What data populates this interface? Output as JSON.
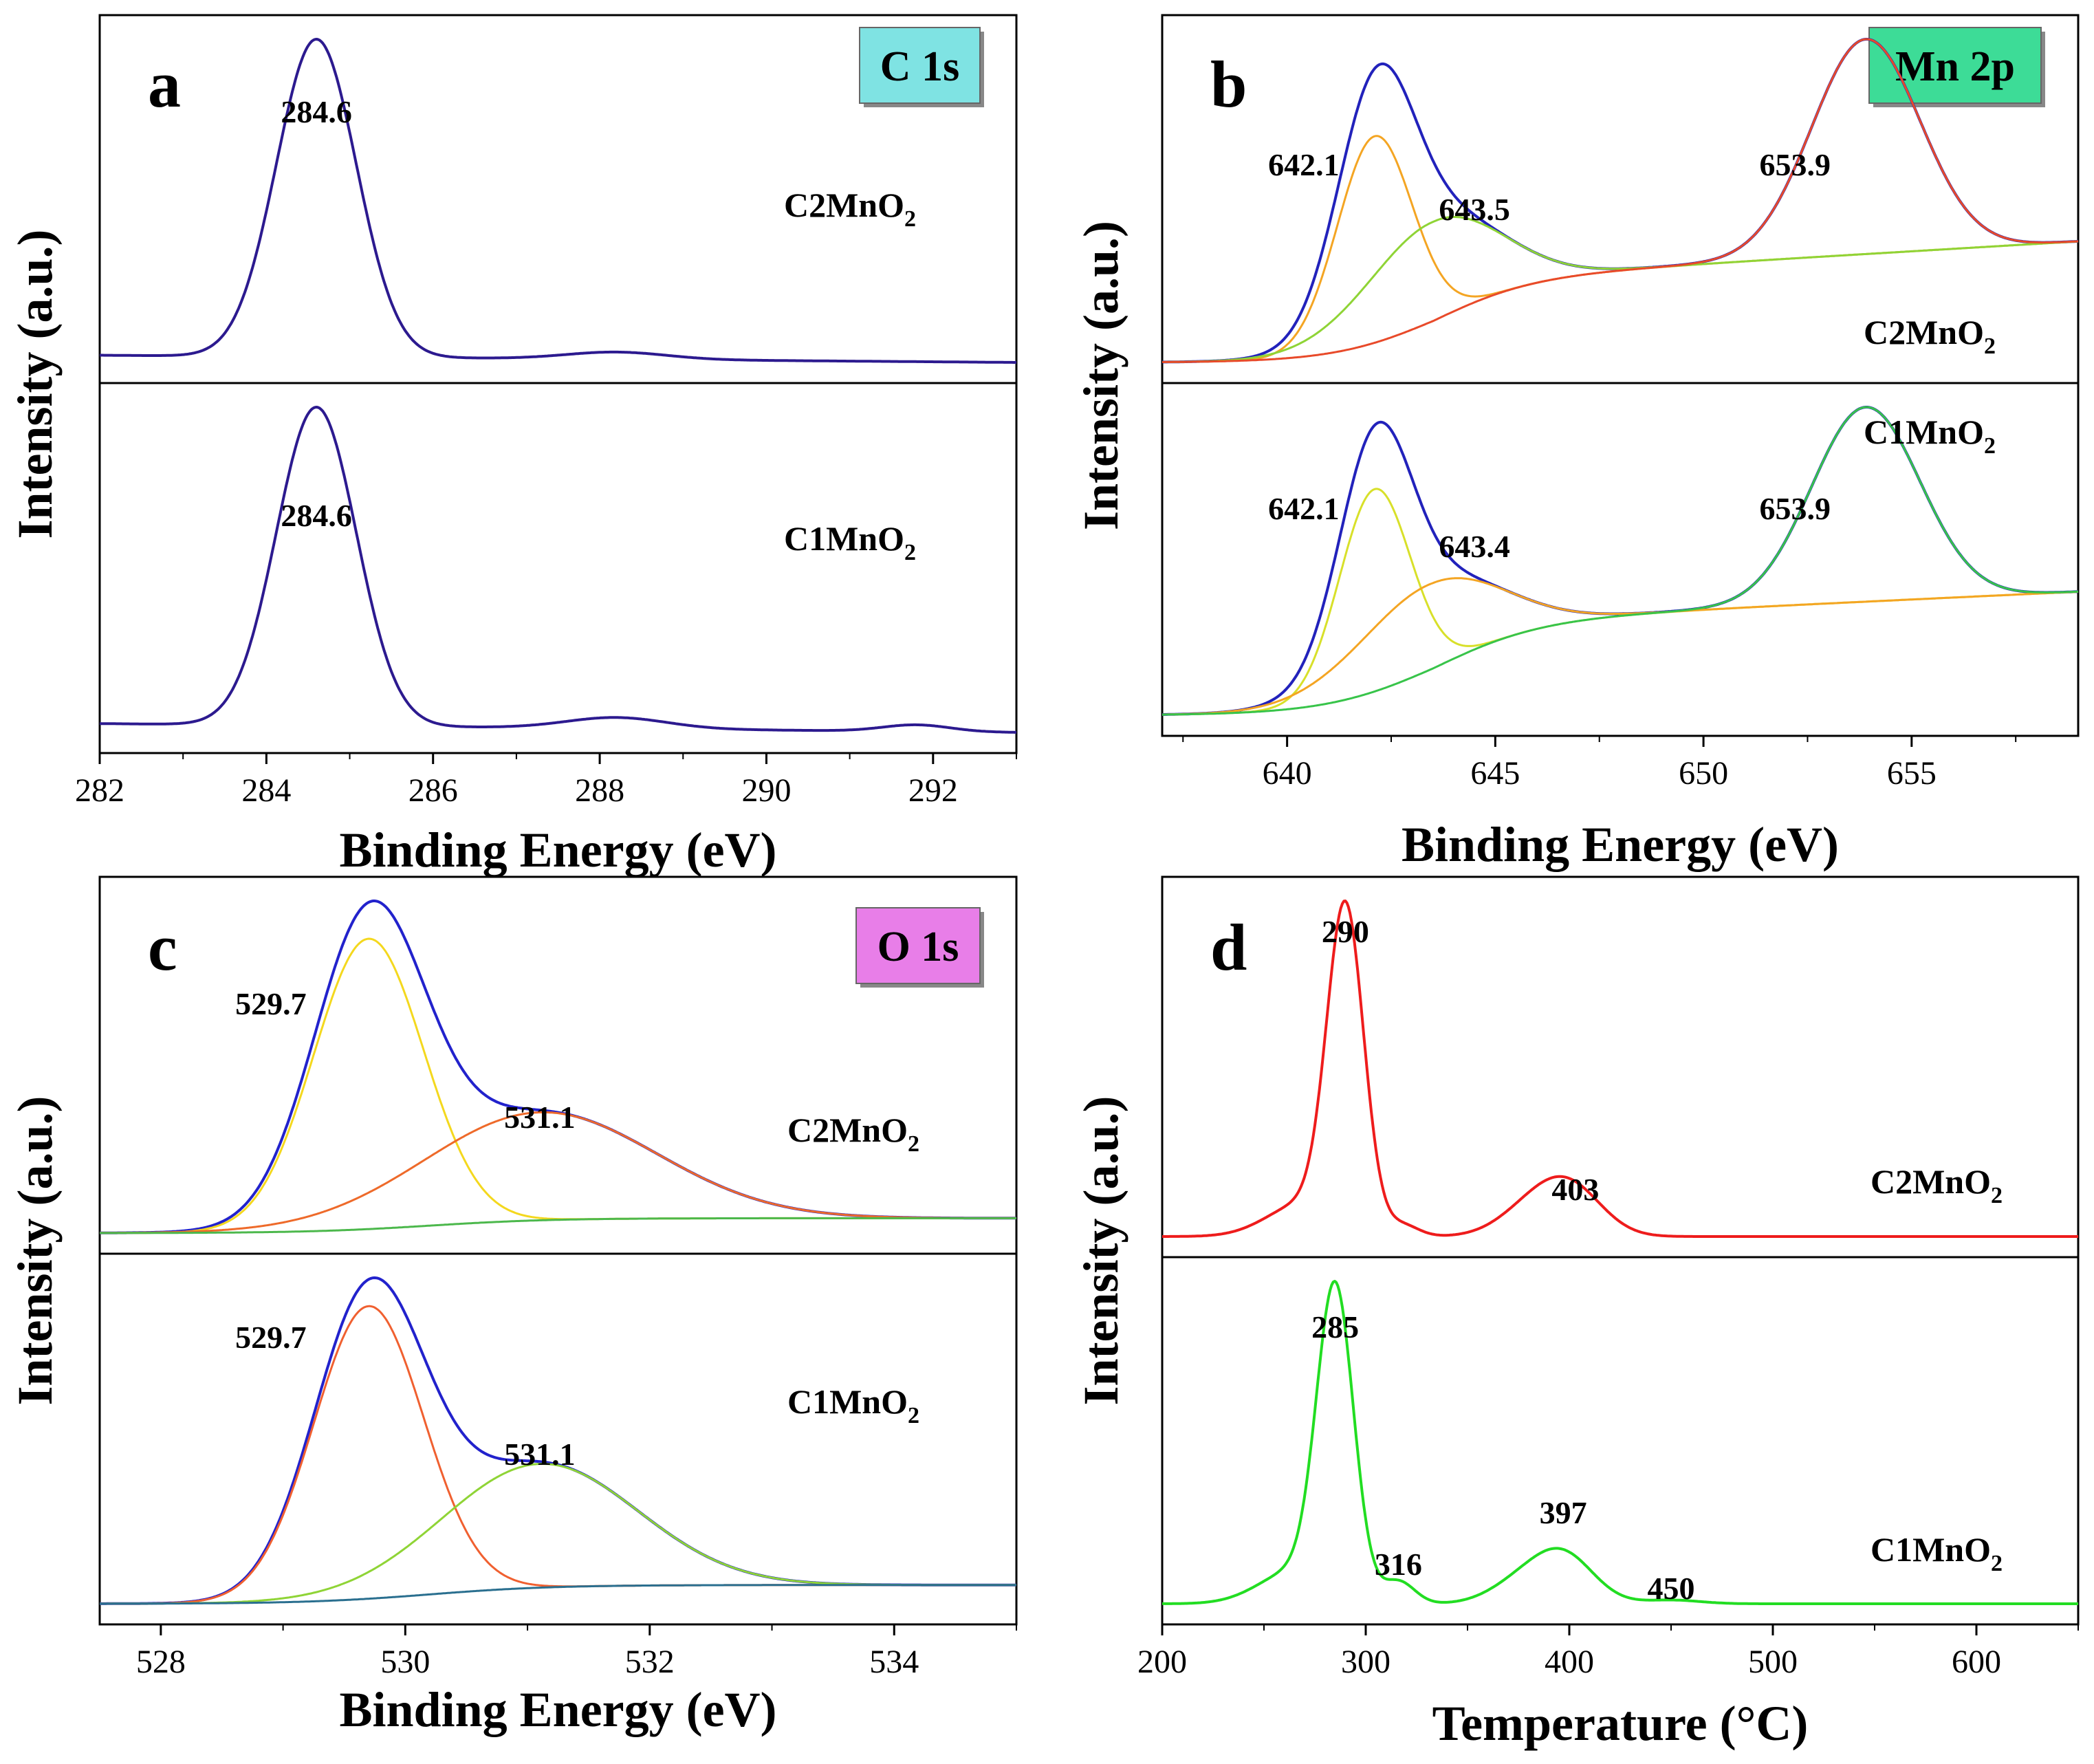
{
  "chart_data": [
    {
      "id": "a",
      "type": "line",
      "panel_letter": "a",
      "badge": {
        "text": "C 1s",
        "color": "#7fe3e3"
      },
      "xlabel": "Binding Energy (eV)",
      "ylabel": "Intensity (a.u.)",
      "xlim": [
        282,
        293
      ],
      "xticks": [
        282,
        284,
        286,
        288,
        290,
        292
      ],
      "subpanels": [
        {
          "sample": {
            "name": "C2MnO",
            "sub": "2"
          },
          "series": [
            {
              "name": "C 1s",
              "color": "#2c1a8f",
              "width": 4,
              "components": [
                {
                  "center": 284.6,
                  "sigma": 0.48,
                  "amp": 0.88
                },
                {
                  "center": 288.2,
                  "sigma": 0.6,
                  "amp": 0.02
                }
              ],
              "baseline": [
                0.0,
                0.02
              ]
            }
          ],
          "peak_labels": [
            {
              "text": "284.6",
              "x": 284.6
            }
          ]
        },
        {
          "sample": {
            "name": "C1MnO",
            "sub": "2"
          },
          "series": [
            {
              "name": "C 1s",
              "color": "#2c1a8f",
              "width": 4,
              "components": [
                {
                  "center": 284.6,
                  "sigma": 0.48,
                  "amp": 0.72
                },
                {
                  "center": 288.2,
                  "sigma": 0.6,
                  "amp": 0.025
                },
                {
                  "center": 291.8,
                  "sigma": 0.4,
                  "amp": 0.015
                }
              ],
              "baseline": [
                0.0,
                0.02
              ]
            }
          ],
          "peak_labels": [
            {
              "text": "284.6",
              "x": 284.6
            }
          ]
        }
      ]
    },
    {
      "id": "b",
      "type": "line",
      "panel_letter": "b",
      "badge": {
        "text": "Mn 2p",
        "color": "#3ddc97"
      },
      "xlabel": "Binding Energy (eV)",
      "ylabel": "Intensity (a.u.)",
      "xlim": [
        637,
        659
      ],
      "xticks": [
        640,
        645,
        650,
        655
      ],
      "subpanels": [
        {
          "sample": {
            "name": "C2MnO",
            "sub": "2"
          },
          "series": [
            {
              "name": "envelope",
              "color": "#2222bb",
              "width": 4,
              "components": [
                {
                  "center": 642.1,
                  "sigma": 0.9,
                  "amp": 0.5
                },
                {
                  "center": 643.5,
                  "sigma": 1.6,
                  "amp": 0.24
                },
                {
                  "center": 653.9,
                  "sigma": 1.3,
                  "amp": 0.52
                }
              ],
              "shirley": {
                "center": 643.5,
                "width": 1.2,
                "height": 0.2,
                "slope": 0.006
              }
            },
            {
              "name": "642.1 component",
              "color": "#f4a523",
              "width": 3,
              "components": [
                {
                  "center": 642.1,
                  "sigma": 0.9,
                  "amp": 0.5
                }
              ],
              "shirley": {
                "center": 643.5,
                "width": 1.2,
                "height": 0.2,
                "slope": 0.006
              }
            },
            {
              "name": "643.5 component",
              "color": "#8fd436",
              "width": 3,
              "components": [
                {
                  "center": 643.5,
                  "sigma": 1.6,
                  "amp": 0.24
                }
              ],
              "shirley": {
                "center": 643.5,
                "width": 1.2,
                "height": 0.2,
                "slope": 0.006
              }
            },
            {
              "name": "653.9 component",
              "color": "#e84a2a",
              "width": 3,
              "components": [
                {
                  "center": 653.9,
                  "sigma": 1.3,
                  "amp": 0.52
                }
              ],
              "shirley": {
                "center": 643.5,
                "width": 1.2,
                "height": 0.2,
                "slope": 0.006
              }
            }
          ],
          "peak_labels": [
            {
              "text": "642.1",
              "x": 640.4
            },
            {
              "text": "643.5",
              "x": 644.5
            },
            {
              "text": "653.9",
              "x": 652.2
            }
          ]
        },
        {
          "sample": {
            "name": "C1MnO",
            "sub": "2"
          },
          "series": [
            {
              "name": "envelope",
              "color": "#2222bb",
              "width": 4,
              "components": [
                {
                  "center": 642.1,
                  "sigma": 0.85,
                  "amp": 0.52
                },
                {
                  "center": 643.4,
                  "sigma": 1.7,
                  "amp": 0.22
                },
                {
                  "center": 653.9,
                  "sigma": 1.3,
                  "amp": 0.5
                }
              ],
              "shirley": {
                "center": 643.5,
                "width": 1.3,
                "height": 0.24,
                "slope": 0.005
              }
            },
            {
              "name": "642.1 component",
              "color": "#d8e02a",
              "width": 3,
              "components": [
                {
                  "center": 642.1,
                  "sigma": 0.85,
                  "amp": 0.52
                }
              ],
              "shirley": {
                "center": 643.5,
                "width": 1.3,
                "height": 0.24,
                "slope": 0.005
              }
            },
            {
              "name": "643.4 component",
              "color": "#f4a523",
              "width": 3,
              "components": [
                {
                  "center": 643.4,
                  "sigma": 1.7,
                  "amp": 0.22
                }
              ],
              "shirley": {
                "center": 643.5,
                "width": 1.3,
                "height": 0.24,
                "slope": 0.005
              }
            },
            {
              "name": "653.9 component",
              "color": "#38c44a",
              "width": 3,
              "components": [
                {
                  "center": 653.9,
                  "sigma": 1.3,
                  "amp": 0.5
                }
              ],
              "shirley": {
                "center": 643.5,
                "width": 1.3,
                "height": 0.24,
                "slope": 0.005
              }
            }
          ],
          "peak_labels": [
            {
              "text": "642.1",
              "x": 640.4
            },
            {
              "text": "643.4",
              "x": 644.5
            },
            {
              "text": "653.9",
              "x": 652.2
            }
          ]
        }
      ]
    },
    {
      "id": "c",
      "type": "line",
      "panel_letter": "c",
      "badge": {
        "text": "O 1s",
        "color": "#e87ee8"
      },
      "xlabel": "Binding Energy (eV)",
      "ylabel": "Intensity (a.u.)",
      "xlim": [
        527.5,
        535
      ],
      "xticks": [
        528,
        530,
        532,
        534
      ],
      "subpanels": [
        {
          "sample": {
            "name": "C2MnO",
            "sub": "2"
          },
          "series": [
            {
              "name": "envelope",
              "color": "#2222cc",
              "width": 4,
              "components": [
                {
                  "center": 529.7,
                  "sigma": 0.45,
                  "amp": 0.78
                },
                {
                  "center": 531.1,
                  "sigma": 0.95,
                  "amp": 0.29
                }
              ],
              "shirley": {
                "center": 530.2,
                "width": 0.5,
                "height": 0.04,
                "slope": 0.0
              }
            },
            {
              "name": "529.7 component",
              "color": "#f4d81e",
              "width": 3,
              "components": [
                {
                  "center": 529.7,
                  "sigma": 0.45,
                  "amp": 0.78
                }
              ],
              "shirley": {
                "center": 530.2,
                "width": 0.5,
                "height": 0.04,
                "slope": 0.0
              }
            },
            {
              "name": "531.1 component",
              "color": "#ee6a2a",
              "width": 3,
              "components": [
                {
                  "center": 531.1,
                  "sigma": 0.95,
                  "amp": 0.29
                }
              ],
              "shirley": {
                "center": 530.2,
                "width": 0.5,
                "height": 0.04,
                "slope": 0.0
              }
            },
            {
              "name": "background",
              "color": "#4cb84c",
              "width": 3,
              "components": [],
              "shirley": {
                "center": 530.2,
                "width": 0.5,
                "height": 0.04,
                "slope": 0.0
              }
            }
          ],
          "peak_labels": [
            {
              "text": "529.7",
              "x": 528.9
            },
            {
              "text": "531.1",
              "x": 531.1
            }
          ]
        },
        {
          "sample": {
            "name": "C1MnO",
            "sub": "2"
          },
          "series": [
            {
              "name": "envelope",
              "color": "#2222cc",
              "width": 4,
              "components": [
                {
                  "center": 529.7,
                  "sigma": 0.45,
                  "amp": 0.78
                },
                {
                  "center": 531.1,
                  "sigma": 0.8,
                  "amp": 0.33
                }
              ],
              "shirley": {
                "center": 530.2,
                "width": 0.5,
                "height": 0.05,
                "slope": 0.0
              }
            },
            {
              "name": "529.7 component",
              "color": "#f06030",
              "width": 3,
              "components": [
                {
                  "center": 529.7,
                  "sigma": 0.45,
                  "amp": 0.78
                }
              ],
              "shirley": {
                "center": 530.2,
                "width": 0.5,
                "height": 0.05,
                "slope": 0.0
              }
            },
            {
              "name": "531.1 component",
              "color": "#8fd436",
              "width": 3,
              "components": [
                {
                  "center": 531.1,
                  "sigma": 0.8,
                  "amp": 0.33
                }
              ],
              "shirley": {
                "center": 530.2,
                "width": 0.5,
                "height": 0.05,
                "slope": 0.0
              }
            },
            {
              "name": "background",
              "color": "#2a6f8f",
              "width": 3,
              "components": [],
              "shirley": {
                "center": 530.2,
                "width": 0.5,
                "height": 0.05,
                "slope": 0.0
              }
            }
          ],
          "peak_labels": [
            {
              "text": "529.7",
              "x": 528.9
            },
            {
              "text": "531.1",
              "x": 531.1
            }
          ]
        }
      ]
    },
    {
      "id": "d",
      "type": "line",
      "panel_letter": "d",
      "badge": null,
      "xlabel": "Temperature (°C)",
      "ylabel": "Intensity (a.u.)",
      "xlim": [
        200,
        650
      ],
      "xticks": [
        200,
        300,
        400,
        500,
        600
      ],
      "subpanels": [
        {
          "sample": {
            "name": "C2MnO",
            "sub": "2"
          },
          "series": [
            {
              "name": "TPR",
              "color": "#ee1c1c",
              "width": 4,
              "components": [
                {
                  "center": 290,
                  "sigma": 9,
                  "amp": 0.86
                },
                {
                  "center": 270,
                  "sigma": 18,
                  "amp": 0.09
                },
                {
                  "center": 318,
                  "sigma": 8,
                  "amp": 0.03
                },
                {
                  "center": 400,
                  "sigma": 16,
                  "amp": 0.13
                },
                {
                  "center": 380,
                  "sigma": 16,
                  "amp": 0.06
                }
              ],
              "baseline": [
                0.0,
                0.0
              ]
            }
          ],
          "peak_labels": [
            {
              "text": "290",
              "x": 290
            },
            {
              "text": "403",
              "x": 403
            }
          ]
        },
        {
          "sample": {
            "name": "C1MnO",
            "sub": "2"
          },
          "series": [
            {
              "name": "TPR",
              "color": "#22dd22",
              "width": 4,
              "components": [
                {
                  "center": 285,
                  "sigma": 9,
                  "amp": 0.82
                },
                {
                  "center": 266,
                  "sigma": 18,
                  "amp": 0.09
                },
                {
                  "center": 316,
                  "sigma": 8,
                  "amp": 0.06
                },
                {
                  "center": 397,
                  "sigma": 15,
                  "amp": 0.13
                },
                {
                  "center": 375,
                  "sigma": 15,
                  "amp": 0.05
                },
                {
                  "center": 450,
                  "sigma": 14,
                  "amp": 0.01
                }
              ],
              "baseline": [
                0.0,
                0.0
              ]
            }
          ],
          "peak_labels": [
            {
              "text": "285",
              "x": 285
            },
            {
              "text": "316",
              "x": 316
            },
            {
              "text": "397",
              "x": 397
            },
            {
              "text": "450",
              "x": 450
            }
          ]
        }
      ]
    }
  ]
}
